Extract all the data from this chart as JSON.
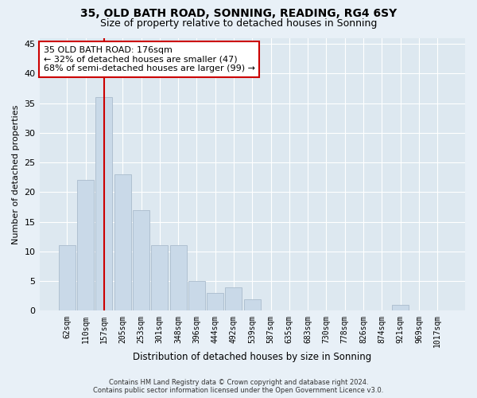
{
  "title": "35, OLD BATH ROAD, SONNING, READING, RG4 6SY",
  "subtitle": "Size of property relative to detached houses in Sonning",
  "xlabel": "Distribution of detached houses by size in Sonning",
  "ylabel": "Number of detached properties",
  "categories": [
    "62sqm",
    "110sqm",
    "157sqm",
    "205sqm",
    "253sqm",
    "301sqm",
    "348sqm",
    "396sqm",
    "444sqm",
    "492sqm",
    "539sqm",
    "587sqm",
    "635sqm",
    "683sqm",
    "730sqm",
    "778sqm",
    "826sqm",
    "874sqm",
    "921sqm",
    "969sqm",
    "1017sqm"
  ],
  "values": [
    11,
    22,
    36,
    23,
    17,
    11,
    11,
    5,
    3,
    4,
    2,
    0,
    0,
    0,
    0,
    0,
    0,
    0,
    1,
    0,
    0
  ],
  "bar_color": "#c9d9e8",
  "bar_edge_color": "#aabbcc",
  "vline_x": 2,
  "vline_color": "#cc0000",
  "annotation_text": "35 OLD BATH ROAD: 176sqm\n← 32% of detached houses are smaller (47)\n68% of semi-detached houses are larger (99) →",
  "annotation_box_color": "#ffffff",
  "annotation_box_edge": "#cc0000",
  "ylim": [
    0,
    46
  ],
  "yticks": [
    0,
    5,
    10,
    15,
    20,
    25,
    30,
    35,
    40,
    45
  ],
  "bg_color": "#dde8f0",
  "fig_color": "#e8f0f7",
  "grid_color": "#ffffff",
  "title_fontsize": 10,
  "subtitle_fontsize": 9,
  "footer": "Contains HM Land Registry data © Crown copyright and database right 2024.\nContains public sector information licensed under the Open Government Licence v3.0."
}
